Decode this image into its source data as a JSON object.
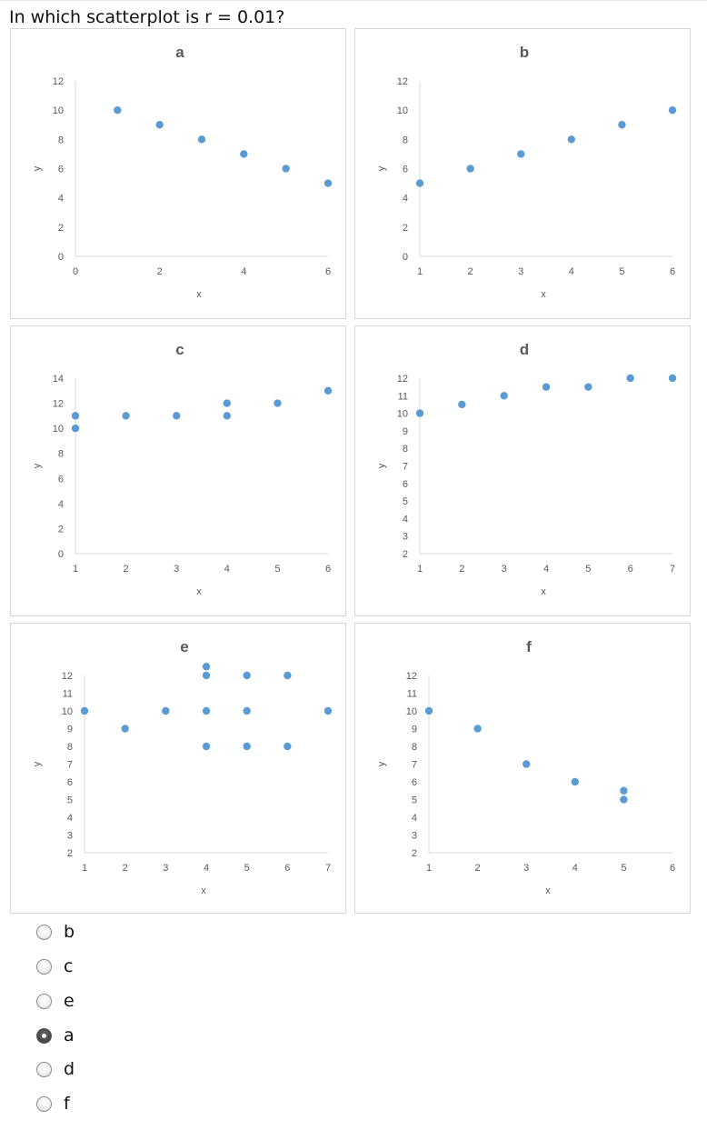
{
  "question": "In which scatterplot is r = 0.01?",
  "point_color": "#5b9bd5",
  "chart_data": [
    {
      "id": "a",
      "type": "scatter",
      "title": "a",
      "xlabel": "x",
      "ylabel": "y",
      "xlim": [
        0,
        6
      ],
      "ylim": [
        0,
        12
      ],
      "xticks": [
        0,
        2,
        4,
        6
      ],
      "yticks": [
        0,
        2,
        4,
        6,
        8,
        10,
        12
      ],
      "points": [
        [
          1,
          10
        ],
        [
          2,
          9
        ],
        [
          3,
          8
        ],
        [
          4,
          7
        ],
        [
          5,
          6
        ],
        [
          6,
          5
        ]
      ]
    },
    {
      "id": "b",
      "type": "scatter",
      "title": "b",
      "xlabel": "x",
      "ylabel": "y",
      "xlim": [
        1,
        6
      ],
      "ylim": [
        0,
        12
      ],
      "xticks": [
        1,
        2,
        3,
        4,
        5,
        6
      ],
      "yticks": [
        0,
        2,
        4,
        6,
        8,
        10,
        12
      ],
      "points": [
        [
          1,
          5
        ],
        [
          2,
          6
        ],
        [
          3,
          7
        ],
        [
          4,
          8
        ],
        [
          5,
          9
        ],
        [
          6,
          10
        ]
      ]
    },
    {
      "id": "c",
      "type": "scatter",
      "title": "c",
      "xlabel": "x",
      "ylabel": "y",
      "xlim": [
        1,
        6
      ],
      "ylim": [
        0,
        14
      ],
      "xticks": [
        1,
        2,
        3,
        4,
        5,
        6
      ],
      "yticks": [
        0,
        2,
        4,
        6,
        8,
        10,
        12,
        14
      ],
      "points": [
        [
          1,
          11
        ],
        [
          1,
          10
        ],
        [
          2,
          11
        ],
        [
          3,
          11
        ],
        [
          4,
          12
        ],
        [
          4,
          11
        ],
        [
          5,
          12
        ],
        [
          6,
          13
        ]
      ]
    },
    {
      "id": "d",
      "type": "scatter",
      "title": "d",
      "xlabel": "x",
      "ylabel": "y",
      "xlim": [
        1,
        7
      ],
      "ylim": [
        2,
        12
      ],
      "xticks": [
        1,
        2,
        3,
        4,
        5,
        6,
        7
      ],
      "yticks": [
        2,
        3,
        4,
        5,
        6,
        7,
        8,
        9,
        10,
        11,
        12
      ],
      "points": [
        [
          1,
          10
        ],
        [
          2,
          10.5
        ],
        [
          3,
          11
        ],
        [
          4,
          11.5
        ],
        [
          5,
          11.5
        ],
        [
          6,
          12
        ],
        [
          7,
          12
        ]
      ]
    },
    {
      "id": "e",
      "type": "scatter",
      "title": "e",
      "xlabel": "x",
      "ylabel": "y",
      "xlim": [
        1,
        7
      ],
      "ylim": [
        2,
        12
      ],
      "xticks": [
        1,
        2,
        3,
        4,
        5,
        6,
        7
      ],
      "yticks": [
        2,
        3,
        4,
        5,
        6,
        7,
        8,
        9,
        10,
        11,
        12
      ],
      "points": [
        [
          1,
          10
        ],
        [
          2,
          9
        ],
        [
          3,
          10
        ],
        [
          4,
          12.5
        ],
        [
          4,
          12
        ],
        [
          4,
          10
        ],
        [
          4,
          8
        ],
        [
          5,
          12
        ],
        [
          5,
          10
        ],
        [
          5,
          8
        ],
        [
          6,
          12
        ],
        [
          6,
          8
        ],
        [
          7,
          10
        ]
      ]
    },
    {
      "id": "f",
      "type": "scatter",
      "title": "f",
      "xlabel": "x",
      "ylabel": "y",
      "xlim": [
        1,
        6
      ],
      "ylim": [
        2,
        12
      ],
      "xticks": [
        1,
        2,
        3,
        4,
        5,
        6
      ],
      "yticks": [
        2,
        3,
        4,
        5,
        6,
        7,
        8,
        9,
        10,
        11,
        12
      ],
      "points": [
        [
          1,
          10
        ],
        [
          2,
          9
        ],
        [
          3,
          7
        ],
        [
          4,
          6
        ],
        [
          5,
          5.5
        ],
        [
          5,
          5
        ]
      ]
    }
  ],
  "options": [
    {
      "label": "b",
      "checked": false
    },
    {
      "label": "c",
      "checked": false
    },
    {
      "label": "e",
      "checked": false
    },
    {
      "label": "a",
      "checked": true
    },
    {
      "label": "d",
      "checked": false
    },
    {
      "label": "f",
      "checked": false
    }
  ]
}
